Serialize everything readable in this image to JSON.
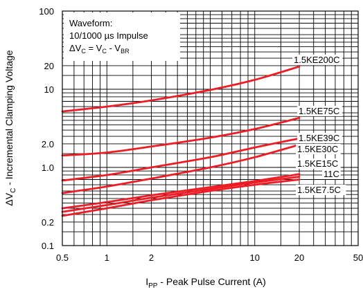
{
  "chart_data": {
    "type": "line",
    "xlabel": "I",
    "xlabel_sub": "PP",
    "xlabel_rest": " - Peak Pulse Current (A)",
    "ylabel_pre": "ΔV",
    "ylabel_sub": "C",
    "ylabel_rest": " - Incremental Clamping Voltage",
    "x_scale": "log",
    "y_scale": "log",
    "xlim": [
      0.5,
      50
    ],
    "ylim": [
      0.1,
      100
    ],
    "grid": true,
    "x_ticks": [
      {
        "value": 0.5,
        "label": "0.5"
      },
      {
        "value": 1,
        "label": "1"
      },
      {
        "value": 2,
        "label": "2"
      },
      {
        "value": 10,
        "label": "10"
      },
      {
        "value": 20,
        "label": "20"
      },
      {
        "value": 50,
        "label": "50"
      }
    ],
    "y_ticks": [
      {
        "value": 0.1,
        "label": "0.1"
      },
      {
        "value": 0.2,
        "label": "0.2"
      },
      {
        "value": 1,
        "label": "1.0"
      },
      {
        "value": 2,
        "label": "2.0"
      },
      {
        "value": 10,
        "label": "10"
      },
      {
        "value": 20,
        "label": "20"
      },
      {
        "value": 100,
        "label": "100"
      }
    ],
    "annotation": {
      "line1": "Waveform:",
      "line2": "10/1000 µs Impulse",
      "line3_a": "ΔV",
      "line3_a_sub": "C",
      "line3_b": " = V",
      "line3_b_sub": "C",
      "line3_c": " - V",
      "line3_c_sub": "BR"
    },
    "line_color": "#ee1c24",
    "series": [
      {
        "name": "1.5KE200C",
        "x": [
          0.5,
          1,
          2,
          5,
          10,
          20
        ],
        "y": [
          5.2,
          6.0,
          7.2,
          9.8,
          13.2,
          19.5
        ]
      },
      {
        "name": "1.5KE75C",
        "x": [
          0.5,
          1,
          2,
          5,
          10,
          20
        ],
        "y": [
          1.42,
          1.55,
          1.85,
          2.4,
          3.1,
          4.3
        ]
      },
      {
        "name": "1.5KE39C",
        "x": [
          0.5,
          1,
          2,
          5,
          10,
          20
        ],
        "y": [
          0.68,
          0.8,
          1.0,
          1.35,
          1.8,
          2.35
        ]
      },
      {
        "name": "1.5KE30C",
        "x": [
          0.5,
          1,
          2,
          5,
          10,
          20
        ],
        "y": [
          0.47,
          0.57,
          0.72,
          1.0,
          1.35,
          1.95
        ]
      },
      {
        "name": "1.5KE15C",
        "x": [
          0.5,
          1,
          2,
          5,
          10,
          20
        ],
        "y": [
          0.3,
          0.36,
          0.44,
          0.56,
          0.67,
          0.82
        ]
      },
      {
        "name": "11C",
        "x": [
          0.5,
          1,
          2,
          5,
          10,
          20
        ],
        "y": [
          0.27,
          0.33,
          0.41,
          0.53,
          0.64,
          0.76
        ]
      },
      {
        "name": "1.5KE7.5C",
        "x": [
          0.5,
          1,
          2,
          5,
          10,
          20
        ],
        "y": [
          0.24,
          0.3,
          0.38,
          0.5,
          0.6,
          0.7
        ]
      }
    ]
  }
}
